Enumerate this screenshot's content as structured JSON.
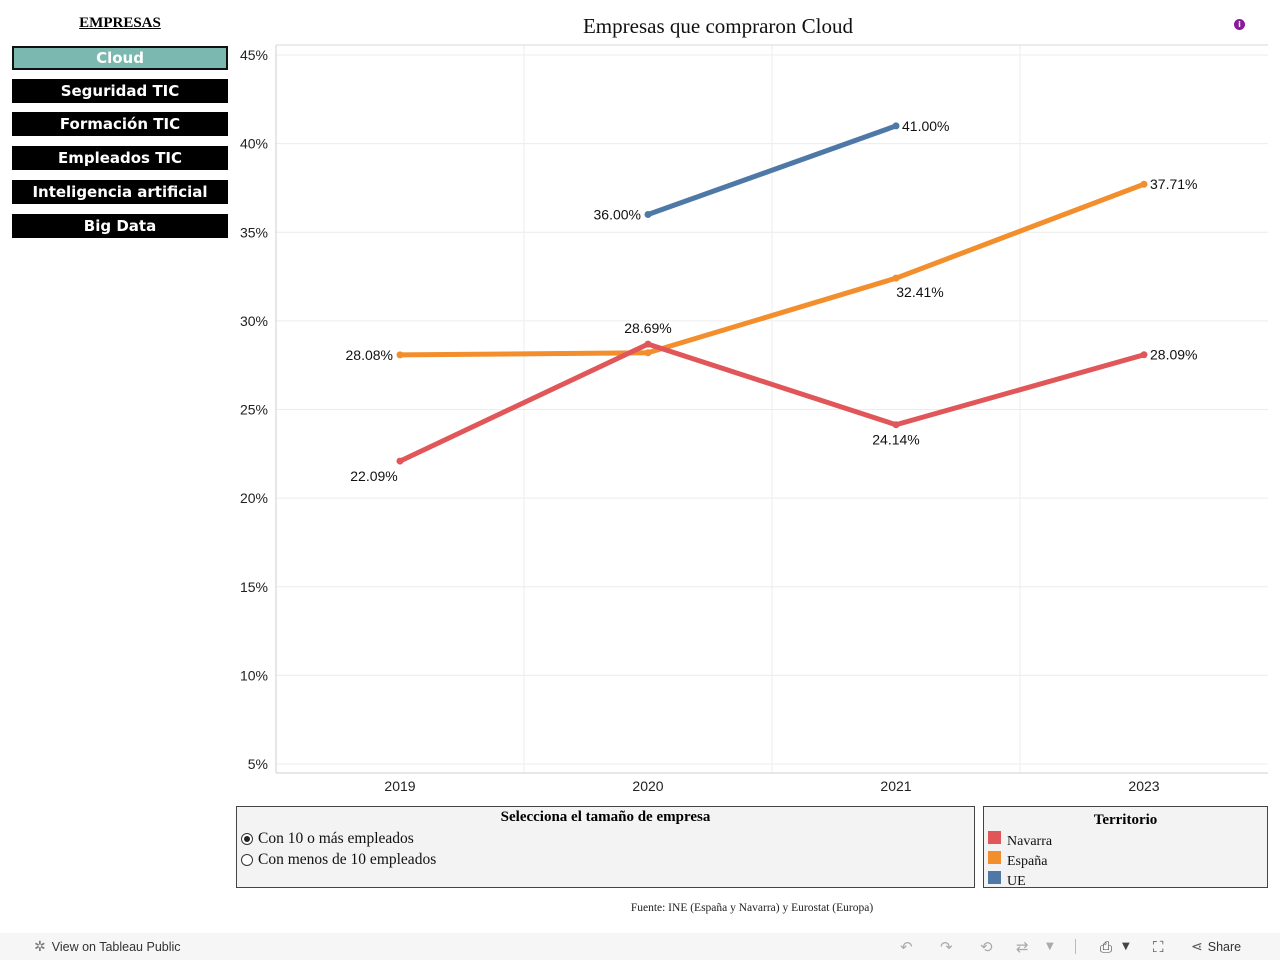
{
  "sidebar": {
    "title": "EMPRESAS",
    "items": [
      {
        "label": "Cloud",
        "active": true
      },
      {
        "label": "Seguridad TIC",
        "active": false
      },
      {
        "label": "Formación TIC",
        "active": false
      },
      {
        "label": "Empleados TIC",
        "active": false
      },
      {
        "label": "Inteligencia artificial",
        "active": false
      },
      {
        "label": "Big Data",
        "active": false
      }
    ]
  },
  "size_filter": {
    "title": "Selecciona el tamaño de empresa",
    "options": [
      {
        "label": "Con 10 o más empleados",
        "selected": true
      },
      {
        "label": "Con menos de 10 empleados",
        "selected": false
      }
    ]
  },
  "legend": {
    "title": "Territorio",
    "items": [
      {
        "label": "Navarra",
        "color": "#e15759"
      },
      {
        "label": "España",
        "color": "#f28e2b"
      },
      {
        "label": "UE",
        "color": "#4e79a7"
      }
    ]
  },
  "source": "Fuente: INE (España y Navarra) y Eurostat (Europa)",
  "footer": {
    "view_label": "View on Tableau Public",
    "share_label": "Share"
  },
  "info_icon": "info-icon",
  "chart_data": {
    "type": "line",
    "title": "Empresas que compraron Cloud",
    "xlabel": "",
    "ylabel": "",
    "categories": [
      "2019",
      "2020",
      "2021",
      "2023"
    ],
    "ylim": [
      5,
      45
    ],
    "yticks": [
      "45%",
      "40%",
      "35%",
      "30%",
      "25%",
      "20%",
      "15%",
      "10%",
      "5%"
    ],
    "ytick_values": [
      45,
      40,
      35,
      30,
      25,
      20,
      15,
      10,
      5
    ],
    "grid": true,
    "series": [
      {
        "name": "Navarra",
        "color": "#e15759",
        "values": [
          22.09,
          28.69,
          24.14,
          28.09
        ],
        "labels": [
          "22.09%",
          "28.69%",
          "24.14%",
          "28.09%"
        ]
      },
      {
        "name": "España",
        "color": "#f28e2b",
        "values": [
          28.08,
          28.2,
          32.41,
          37.71
        ],
        "labels": [
          "28.08%",
          "",
          "32.41%",
          "37.71%"
        ]
      },
      {
        "name": "UE",
        "color": "#4e79a7",
        "values": [
          null,
          36.0,
          41.0,
          null
        ],
        "labels": [
          "",
          "36.00%",
          "41.00%",
          ""
        ]
      }
    ]
  }
}
